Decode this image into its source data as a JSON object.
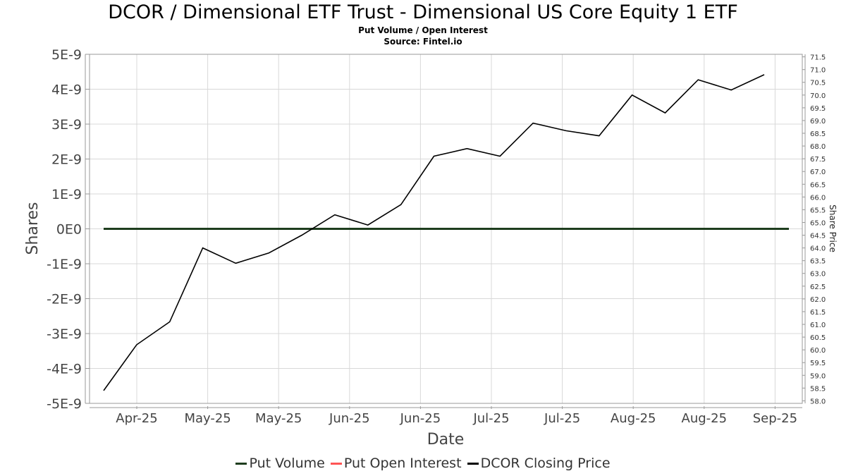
{
  "chart_data": {
    "type": "line",
    "title": "DCOR / Dimensional ETF Trust - Dimensional US Core Equity 1 ETF",
    "subtitle_1": "Put Volume / Open Interest",
    "subtitle_2": "Source: Fintel.io",
    "xlabel": "Date",
    "ylabel": "Shares",
    "y2label": "Share Price",
    "x_tick_labels": [
      "Apr-25",
      "May-25",
      "May-25",
      "Jun-25",
      "Jun-25",
      "Jul-25",
      "Jul-25",
      "Aug-25",
      "Aug-25",
      "Sep-25"
    ],
    "y_ticks": [
      "5E-9",
      "4E-9",
      "3E-9",
      "2E-9",
      "1E-9",
      "0E0",
      "-1E-9",
      "-2E-9",
      "-3E-9",
      "-4E-9",
      "-5E-9"
    ],
    "ylim": [
      -5e-09,
      5e-09
    ],
    "y2lim": [
      57.9,
      71.6
    ],
    "y2_ticks": [
      "71.5",
      "71.0",
      "70.5",
      "70.0",
      "69.5",
      "69.0",
      "68.5",
      "68.0",
      "67.5",
      "67.0",
      "66.5",
      "66.0",
      "65.5",
      "65.0",
      "64.5",
      "64.0",
      "63.5",
      "63.0",
      "62.5",
      "62.0",
      "61.5",
      "61.0",
      "60.5",
      "60.0",
      "59.5",
      "59.0",
      "58.5",
      "58.0"
    ],
    "grid": true,
    "legend_position": "bottom",
    "series": [
      {
        "name": "Put Volume",
        "axis": "left",
        "color": "#1e3d1e",
        "values": [
          0,
          0
        ]
      },
      {
        "name": "Put Open Interest",
        "axis": "left",
        "color": "#ff5555",
        "values": [
          0,
          0
        ]
      },
      {
        "name": "DCOR Closing Price",
        "axis": "right",
        "color": "#000000",
        "values": [
          58.4,
          60.2,
          61.1,
          64.0,
          63.4,
          63.8,
          64.5,
          65.3,
          64.9,
          65.7,
          67.6,
          67.9,
          67.6,
          68.9,
          68.6,
          68.4,
          70.0,
          69.3,
          70.6,
          70.2,
          70.8
        ]
      }
    ]
  }
}
